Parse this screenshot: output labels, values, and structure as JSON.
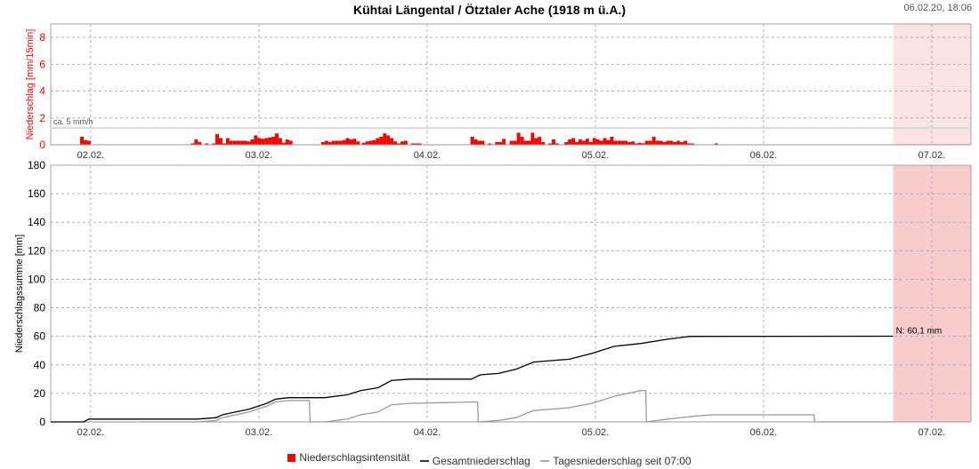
{
  "chart_data": {
    "type": "bar+line",
    "title": "Kühtai Längental / Ötztaler Ache (1918 m ü.A.)",
    "timestamp": "06.02.20, 18:06",
    "x_unit": "hours since 02.02. 00:00",
    "xlim": [
      -5.7,
      125.6
    ],
    "forecast_shade_start": 114.5,
    "x_ticks": [
      {
        "h": 0,
        "label": "02.02."
      },
      {
        "h": 24,
        "label": "03.02."
      },
      {
        "h": 48,
        "label": "04.02."
      },
      {
        "h": 72,
        "label": "05.02."
      },
      {
        "h": 96,
        "label": "06.02."
      },
      {
        "h": 120,
        "label": "07.02."
      }
    ],
    "intensity": {
      "ylabel": "Niederschlag [mm/15min]",
      "ylim": [
        0,
        9
      ],
      "y_ticks": [
        "0",
        "2",
        "4",
        "6",
        "8"
      ],
      "threshold": {
        "value": 1.25,
        "label": "ca. 5 mm/h"
      },
      "step": 0.5,
      "clusters": [
        {
          "start": -1.5,
          "values": [
            0.6,
            0.35,
            0.3
          ]
        },
        {
          "start": 14.3,
          "values": [
            0.1,
            0.4,
            0.2,
            0,
            0.1,
            0,
            0.1,
            0.8,
            0.5,
            0.1
          ]
        },
        {
          "start": 19.3,
          "values": [
            0.5,
            0.3,
            0.3,
            0.3,
            0.3,
            0.3,
            0.25,
            0.4,
            0.7,
            0.5,
            0.45,
            0.5,
            0.55,
            0.6,
            0.85,
            0.5,
            0.15,
            0.4,
            0.3
          ]
        },
        {
          "start": 32.9,
          "values": [
            0.2,
            0.3,
            0.2,
            0.3,
            0.3,
            0.3,
            0.35,
            0.5,
            0.4,
            0.45,
            0.25
          ]
        },
        {
          "start": 38.7,
          "values": [
            0.15,
            0.25,
            0.3,
            0.35,
            0.5,
            0.6,
            0.85,
            0.7,
            0.5,
            0.25,
            0.1,
            0.25,
            0.3,
            0,
            0.1,
            0.1,
            0.1
          ]
        },
        {
          "start": 54.2,
          "values": [
            0.6,
            0.4,
            0.3,
            0.3,
            0,
            0.1,
            0,
            0.2,
            0.2,
            0.45
          ]
        },
        {
          "start": 59.8,
          "values": [
            0.3,
            0.3,
            0.9,
            0.6,
            0.3,
            0.3,
            0.9,
            0.5,
            0.6,
            0.2,
            0,
            0.1,
            0.4,
            0.1
          ]
        },
        {
          "start": 67.6,
          "values": [
            0.2,
            0.4,
            0.5,
            0.2,
            0.4,
            0.3,
            0.45,
            0.2,
            0.5,
            0.4,
            0.3,
            0.5,
            0.35,
            0.6,
            0.3,
            0.3,
            0.3,
            0.3,
            0.2,
            0.25,
            0.1,
            0.15
          ]
        },
        {
          "start": 78.6,
          "values": [
            0.1,
            0.3,
            0.3,
            0.6,
            0.3,
            0.3,
            0.2,
            0.3,
            0.3,
            0.2,
            0.3,
            0.2,
            0.3,
            0.1,
            0.1
          ]
        },
        {
          "start": 89,
          "values": [
            0.1
          ]
        }
      ]
    },
    "sum": {
      "ylabel": "Niederschlagssumme [mm]",
      "ylim": [
        0,
        180
      ],
      "y_ticks": [
        "0",
        "20",
        "40",
        "60",
        "80",
        "100",
        "120",
        "140",
        "160",
        "180"
      ],
      "total_label": "N: 60,1 mm",
      "series": [
        {
          "name": "Gesamtniederschlag",
          "color": "#000000",
          "points": [
            [
              -5.7,
              0
            ],
            [
              -1,
              0
            ],
            [
              -0.25,
              2
            ],
            [
              15.2,
              2
            ],
            [
              17.9,
              3
            ],
            [
              18.8,
              5
            ],
            [
              20.7,
              7
            ],
            [
              22.6,
              9
            ],
            [
              25.1,
              13
            ],
            [
              26.4,
              16
            ],
            [
              28.3,
              17
            ],
            [
              33.4,
              17
            ],
            [
              36.6,
              19
            ],
            [
              38.5,
              22
            ],
            [
              41,
              24
            ],
            [
              42.9,
              29
            ],
            [
              45.5,
              30
            ],
            [
              54.3,
              30
            ],
            [
              55.6,
              33
            ],
            [
              58.2,
              34
            ],
            [
              60.7,
              37
            ],
            [
              63.2,
              42
            ],
            [
              65.7,
              43
            ],
            [
              68.3,
              44
            ],
            [
              71.5,
              48
            ],
            [
              74.7,
              53
            ],
            [
              78.5,
              55
            ],
            [
              82.3,
              58
            ],
            [
              85.5,
              60
            ],
            [
              114.5,
              60.1
            ]
          ]
        },
        {
          "name": "Tagesniederschlag seit 07:00",
          "color": "#999999",
          "points": [
            [
              7.2,
              0
            ],
            [
              15.2,
              0
            ],
            [
              17.9,
              1
            ],
            [
              18.8,
              3
            ],
            [
              20.7,
              5
            ],
            [
              22.6,
              7
            ],
            [
              25.1,
              11
            ],
            [
              26.4,
              14
            ],
            [
              28.3,
              15
            ],
            [
              31.2,
              15
            ],
            [
              31.3,
              0
            ],
            [
              33.4,
              0
            ],
            [
              36.6,
              2
            ],
            [
              38.5,
              5
            ],
            [
              41,
              7
            ],
            [
              42.9,
              12
            ],
            [
              45.5,
              13
            ],
            [
              55.2,
              14
            ],
            [
              55.3,
              0
            ],
            [
              58.2,
              1
            ],
            [
              60.7,
              3
            ],
            [
              63.2,
              8
            ],
            [
              65.7,
              9
            ],
            [
              68.3,
              10
            ],
            [
              71.5,
              13
            ],
            [
              74.7,
              18
            ],
            [
              78.5,
              22
            ],
            [
              79.2,
              22
            ],
            [
              79.3,
              0
            ],
            [
              82.3,
              2
            ],
            [
              86,
              4
            ],
            [
              88.6,
              5
            ],
            [
              103.2,
              5
            ],
            [
              103.3,
              0
            ],
            [
              114.5,
              0
            ]
          ]
        }
      ]
    },
    "legend": [
      {
        "label": "Niederschlagsintensität",
        "color": "#ff0000",
        "kind": "box"
      },
      {
        "label": "Gesamtniederschlag",
        "color": "#333333",
        "kind": "line"
      },
      {
        "label": "Tagesniederschlag seit 07:00",
        "color": "#aaaaaa",
        "kind": "line"
      }
    ],
    "colors": {
      "bar": "#ff0000",
      "shade_top": "#fbe3e3",
      "shade_bottom": "#f8cccc",
      "grid": "#b0b0b0"
    }
  }
}
